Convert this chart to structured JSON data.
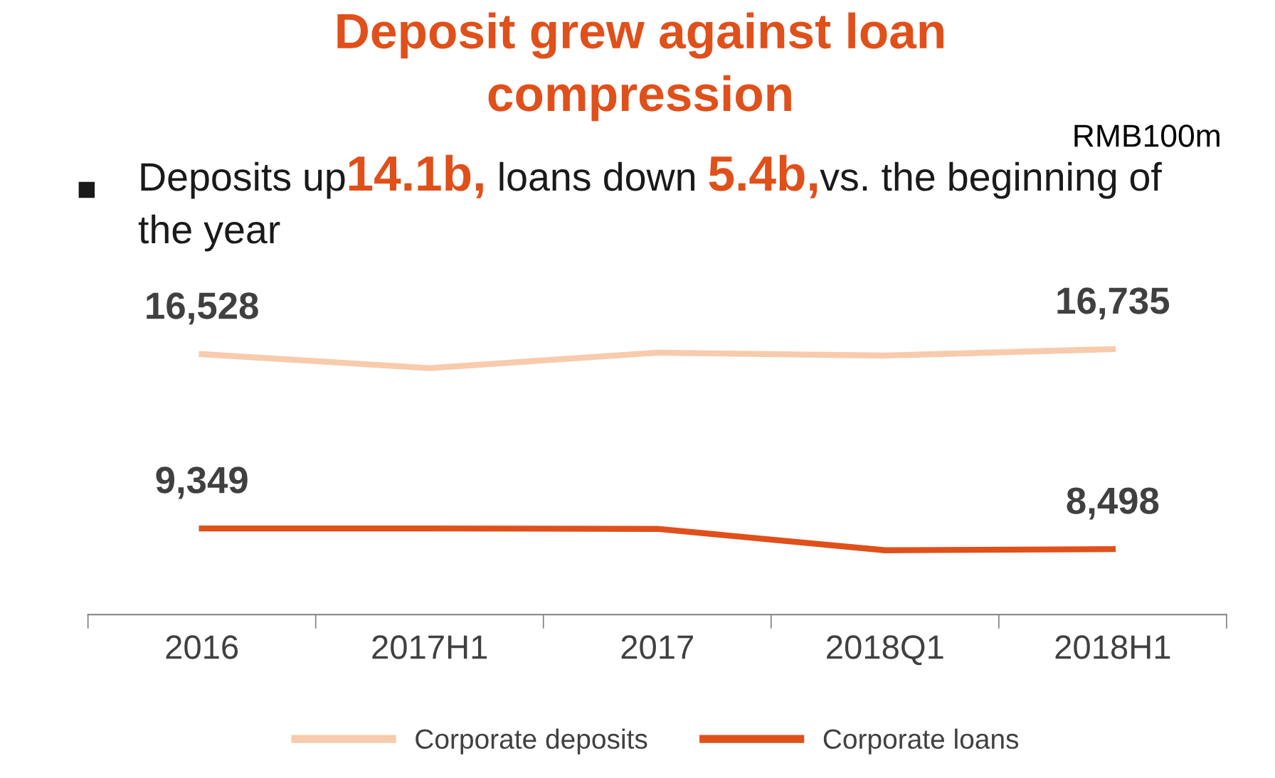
{
  "chart_data": {
    "type": "line",
    "title": "Deposit grew against loan compression",
    "subtitle": "Deposits up14.1b, loans down 5.4b,vs. the beginning of the year",
    "annotations": [
      "RMB100m"
    ],
    "categories": [
      "2016",
      "2017H1",
      "2017",
      "2018Q1",
      "2018H1"
    ],
    "series": [
      {
        "name": "Corporate deposits",
        "color": "#f8cbad",
        "values": [
          16528,
          15950,
          16590,
          16470,
          16735
        ],
        "value_labels": [
          "16,528",
          null,
          null,
          null,
          "16,735"
        ]
      },
      {
        "name": "Corporate loans",
        "color": "#e0501a",
        "values": [
          9349,
          9349,
          9330,
          8450,
          8498
        ],
        "value_labels": [
          "9,349",
          null,
          null,
          null,
          "8,498"
        ]
      }
    ],
    "grid": false,
    "legend": "bottom",
    "marker": "none",
    "line_style": "solid"
  }
}
